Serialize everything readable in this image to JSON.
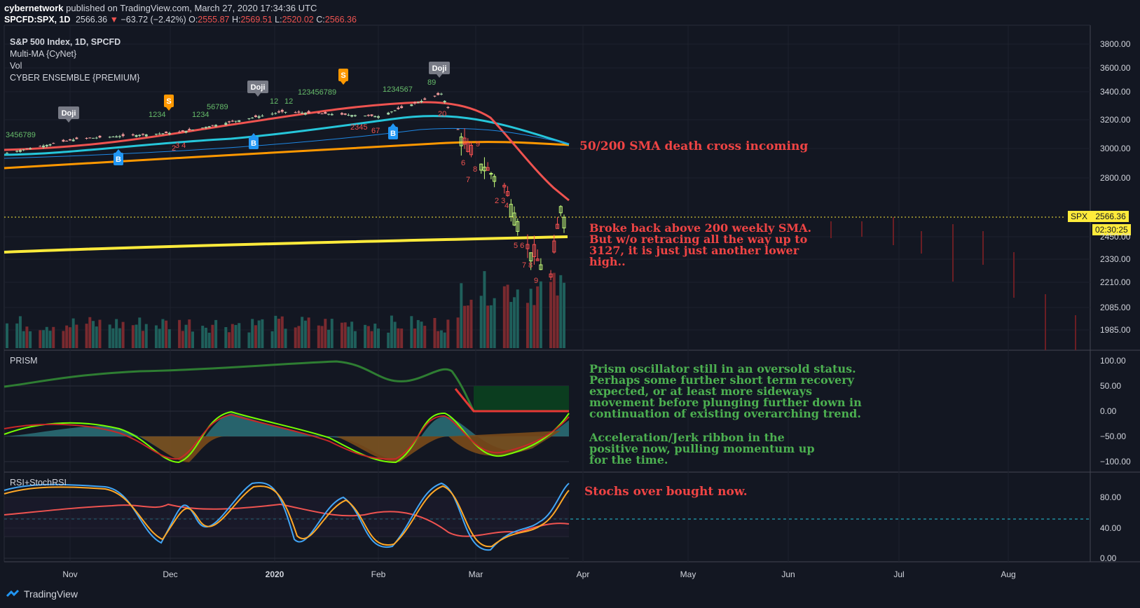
{
  "header": {
    "author": "cybernetwork",
    "published": " published on TradingView.com, March 27, 2020 17:34:36 UTC",
    "symbol": "SPCFD:SPX, 1D",
    "price": "2566.36",
    "change": "−63.72 (−2.42%)",
    "o_label": "O:",
    "o": "2555.87",
    "h_label": "H:",
    "h": "2569.51",
    "l_label": "L:",
    "l": "2520.02",
    "c_label": "C:",
    "c": "2566.36"
  },
  "legend": {
    "title": "S&P 500 Index, 1D, SPCFD",
    "line1": "Multi-MA {CyNet}",
    "line2": "Vol",
    "line3": "CYBER ENSEMBLE {PREMIUM}"
  },
  "panes": {
    "prism_label": "PRISM",
    "rsi_label": "RSI+StochRSI"
  },
  "annotations": {
    "death_cross": "50/200 SMA death cross incoming",
    "weekly_sma": "Broke back above 200 weekly SMA.\nBut w/o retracing all the way up to\n3127, it is just just another lower\nhigh..",
    "prism_note": "Prism oscillator still in an oversold status.\nPerhaps some further short term recovery\nexpected, or at least more sideways\nmovement before plunging further down in\ncontinuation of existing overarching trend.",
    "ribbon_note": "Acceleration/Jerk ribbon in the\npositive now, pulling momentum up\nfor the time.",
    "stoch_note": "Stochs over bought now."
  },
  "badges": {
    "symbol": "SPX",
    "price": "2566.36",
    "countdown": "02:30:25"
  },
  "signals": {
    "doji": "Doji",
    "sell": "S",
    "buy": "B"
  },
  "footer": {
    "brand": "TradingView"
  },
  "colors": {
    "background": "#131722",
    "up": "#26a69a",
    "down": "#ef5350",
    "sma_red": "#ef5350",
    "sma_cyan": "#26c6da",
    "sma_orange": "#ff9800",
    "weekly_yellow": "#ffeb3b",
    "prism_green": "#2e7d32",
    "rsi_red": "#ef5350",
    "stoch_blue": "#42a5f5",
    "stoch_orange": "#ffa726"
  },
  "chart_data": [
    {
      "type": "candlestick",
      "title": "S&P 500 Index, 1D, SPCFD",
      "x_ticks": [
        "Nov",
        "Dec",
        "2020",
        "Feb",
        "Mar",
        "Apr",
        "May",
        "Jun",
        "Jul",
        "Aug"
      ],
      "y_ticks": [
        3800,
        3600,
        3400,
        3200,
        3000,
        2800,
        2450,
        2330,
        2210,
        2085,
        1985
      ],
      "last_price": 2566.36,
      "approx_close_path": [
        {
          "x": "2019-10-11",
          "close": 2970
        },
        {
          "x": "2019-11-01",
          "close": 3066
        },
        {
          "x": "2019-12-02",
          "close": 3113
        },
        {
          "x": "2020-01-02",
          "close": 3257
        },
        {
          "x": "2020-01-31",
          "close": 3225
        },
        {
          "x": "2020-02-19",
          "close": 3386
        },
        {
          "x": "2020-02-27",
          "close": 2979
        },
        {
          "x": "2020-03-09",
          "close": 2746
        },
        {
          "x": "2020-03-16",
          "close": 2386
        },
        {
          "x": "2020-03-23",
          "close": 2237
        },
        {
          "x": "2020-03-26",
          "close": 2630
        },
        {
          "x": "2020-03-27",
          "close": 2566
        }
      ]
    },
    {
      "type": "line",
      "title": "PRISM",
      "y_ticks": [
        100,
        50,
        0,
        -50,
        -100
      ],
      "ylim": [
        -100,
        100
      ]
    },
    {
      "type": "line",
      "title": "RSI+StochRSI",
      "y_ticks": [
        80,
        40,
        0
      ],
      "ylim": [
        0,
        100
      ]
    }
  ]
}
